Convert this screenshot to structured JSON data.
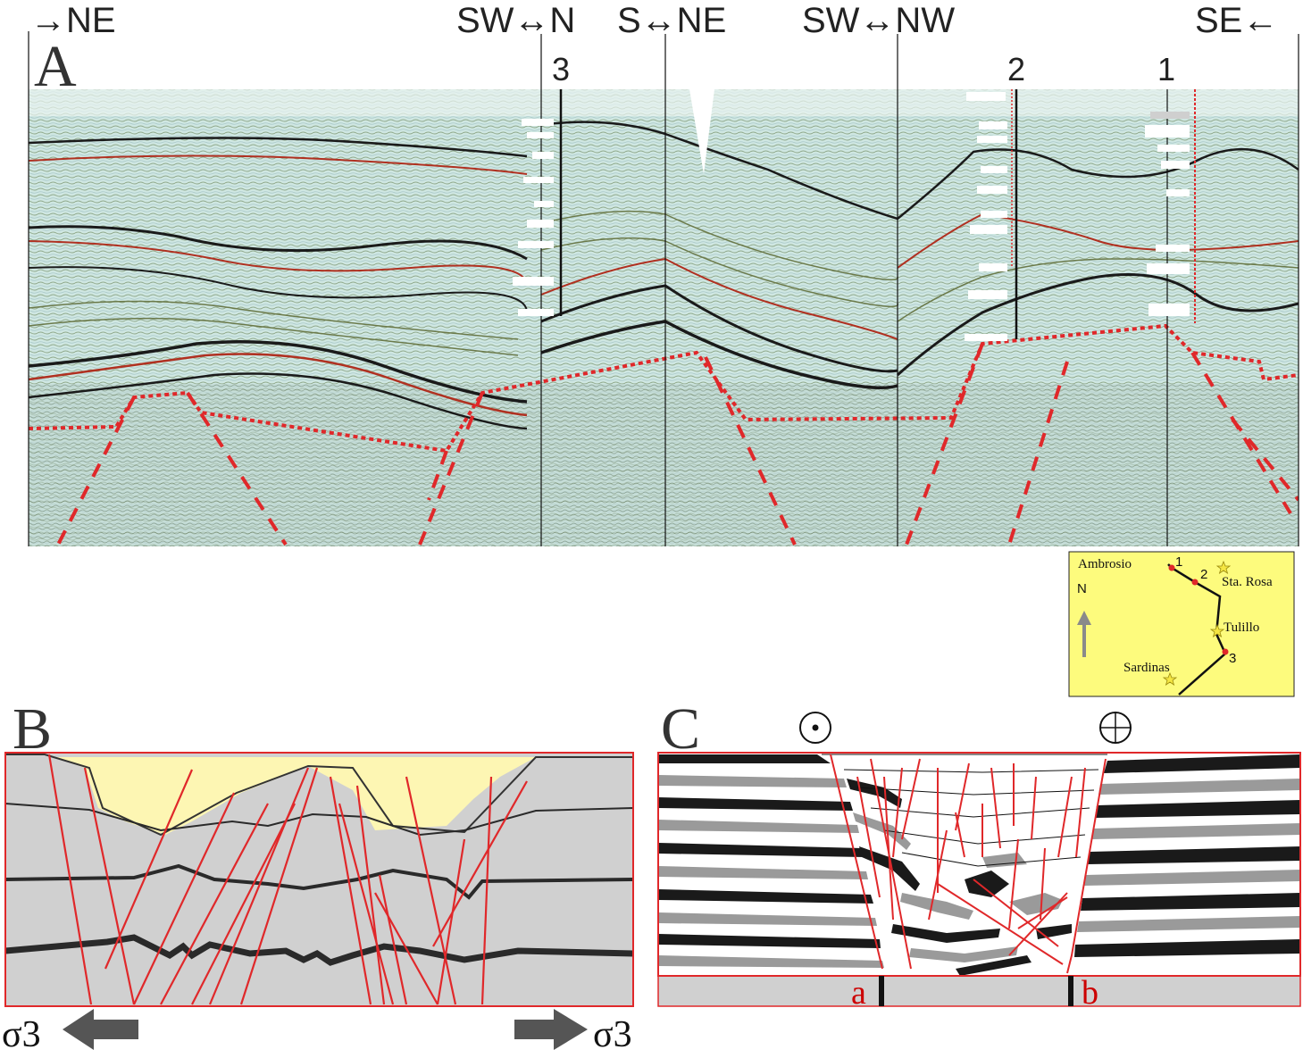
{
  "panel_a": {
    "letter": "A",
    "directions": [
      {
        "id": "ne-left",
        "text": "→NE"
      },
      {
        "id": "sw-n",
        "text": "SW↔N"
      },
      {
        "id": "s-ne",
        "text": "S↔NE"
      },
      {
        "id": "sw-nw",
        "text": "SW↔NW"
      },
      {
        "id": "se-right",
        "text": "SE←"
      }
    ],
    "wells": [
      {
        "id": "well-3",
        "label": "3"
      },
      {
        "id": "well-2",
        "label": "2"
      },
      {
        "id": "well-1",
        "label": "1"
      }
    ],
    "colors": {
      "fault": "#e0282a",
      "reflector_dark": "#1a1a1a",
      "reflector_red": "#b03020",
      "seismic_bg": "#cfe7e2"
    }
  },
  "inset_map": {
    "north_label": "N",
    "places": [
      "Ambrosio",
      "Sta. Rosa",
      "Tulillo",
      "Sardinas"
    ],
    "well_numbers": [
      "1",
      "2",
      "3"
    ],
    "colors": {
      "background": "#fdfb7d",
      "star": "#f5e642",
      "well_dot": "#e0282a"
    }
  },
  "panel_b": {
    "letter": "B",
    "sigma_left": "σ3",
    "sigma_right": "σ3",
    "colors": {
      "rock": "#d0d0d0",
      "basin_fill": "#fdf6b3",
      "fault": "#e0282a",
      "layer": "#2a2a2a",
      "arrow": "#555555"
    }
  },
  "panel_c": {
    "letter": "C",
    "symbol_out": "out-of-page-symbol",
    "symbol_in": "into-page-symbol",
    "label_a": "a",
    "label_b": "b",
    "colors": {
      "layer_black": "#1a1a1a",
      "layer_gray": "#9a9a9a",
      "fault": "#e0282a",
      "basement": "#d0d0d0"
    }
  }
}
